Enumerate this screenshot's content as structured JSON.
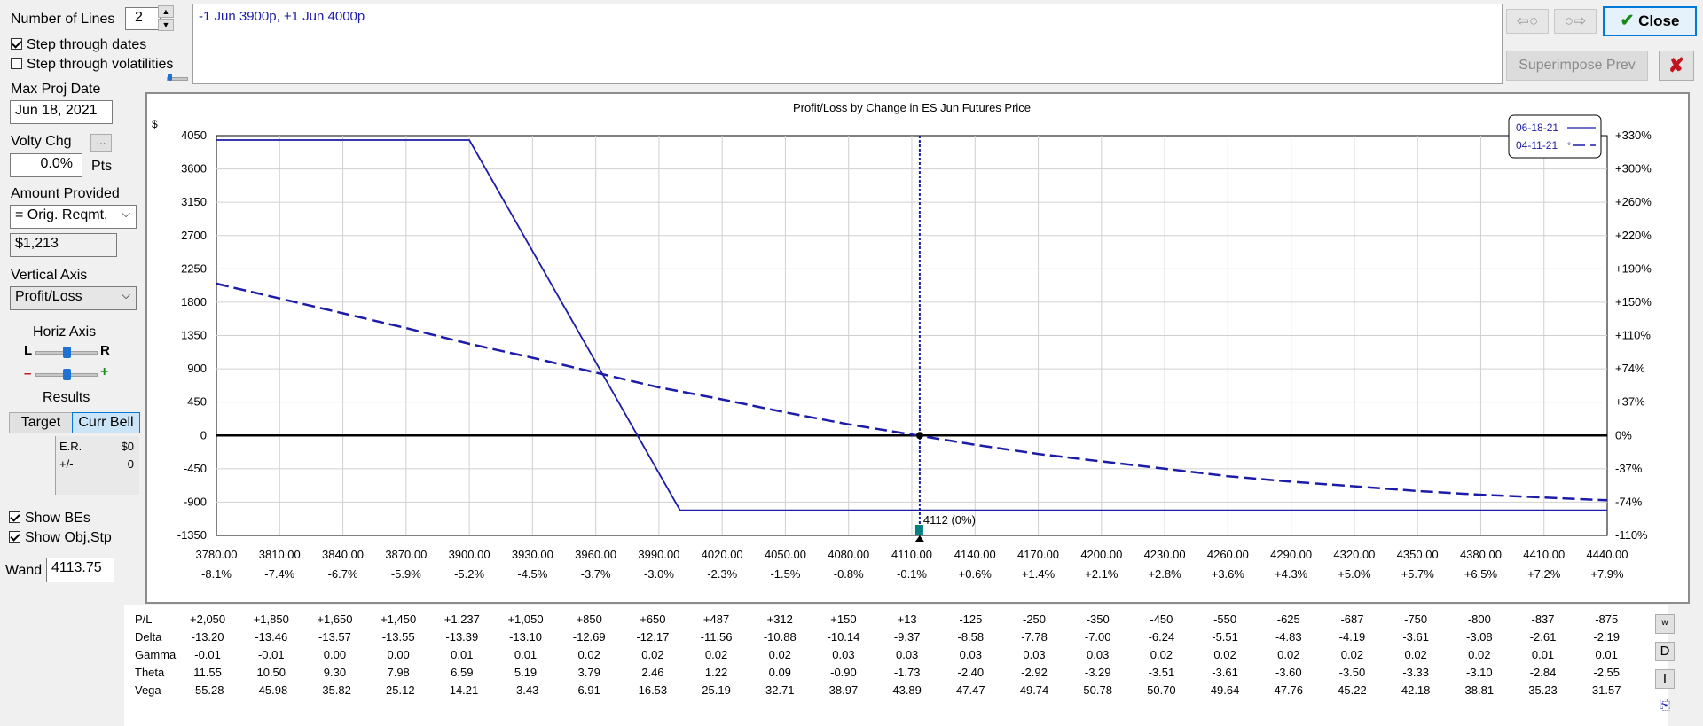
{
  "left_panel": {
    "num_lines_label": "Number of Lines",
    "num_lines_value": "2",
    "step_dates_label": "Step through dates",
    "step_dates_checked": true,
    "step_vols_label": "Step through volatilities",
    "step_vols_checked": false,
    "max_proj_date_label": "Max Proj Date",
    "max_proj_date_value": "Jun 18, 2021",
    "volty_chg_label": "Volty Chg",
    "volty_chg_btn": "...",
    "volty_chg_value": "0.0%",
    "pts_label": "Pts",
    "amount_label": "Amount Provided",
    "amount_select": "= Orig. Reqmt.",
    "amount_value": "$1,213",
    "vertical_axis_label": "Vertical Axis",
    "vertical_axis_select": "Profit/Loss",
    "horiz_axis_label": "Horiz Axis",
    "slider_left": "L",
    "slider_right": "R",
    "slider_minus": "–",
    "slider_plus": "+",
    "results_label": "Results",
    "target_btn": "Target",
    "curr_bell_btn": "Curr Bell",
    "er_label": "E.R.",
    "er_value": "$0",
    "pm_label": "+/-",
    "pm_value": "0",
    "show_bes_label": "Show BEs",
    "show_bes_checked": true,
    "show_obj_label": "Show Obj,Stp",
    "show_obj_checked": true,
    "wand_label": "Wand",
    "wand_value": "4113.75"
  },
  "top": {
    "positions_text": "-1 Jun 3900p, +1 Jun 4000p",
    "prev_btn": "⇦○",
    "next_btn": "○⇨",
    "close_btn": "Close",
    "superimpose_btn": "Superimpose Prev",
    "x_btn": "✘"
  },
  "colors": {
    "line": "#1c1ca8",
    "accent": "#0078d7",
    "close_check": "#1a8a1a",
    "x_red": "#c0141e",
    "marker_teal": "#008080"
  },
  "chart_data": {
    "type": "line",
    "title": "Profit/Loss by Change in ES Jun Futures Price",
    "ylabel": "$",
    "xlim": [
      3780,
      4440
    ],
    "ylim": [
      -1350,
      4050
    ],
    "x_ticks": [
      "3780.00",
      "3810.00",
      "3840.00",
      "3870.00",
      "3900.00",
      "3930.00",
      "3960.00",
      "3990.00",
      "4020.00",
      "4050.00",
      "4080.00",
      "4110.00",
      "4140.00",
      "4170.00",
      "4200.00",
      "4230.00",
      "4260.00",
      "4290.00",
      "4320.00",
      "4350.00",
      "4380.00",
      "4410.00",
      "4440.00"
    ],
    "x_pct_ticks": [
      "-8.1%",
      "-7.4%",
      "-6.7%",
      "-5.9%",
      "-5.2%",
      "-4.5%",
      "-3.7%",
      "-3.0%",
      "-2.3%",
      "-1.5%",
      "-0.8%",
      "-0.1%",
      "+0.6%",
      "+1.4%",
      "+2.1%",
      "+2.8%",
      "+3.6%",
      "+4.3%",
      "+5.0%",
      "+5.7%",
      "+6.5%",
      "+7.2%",
      "+7.9%"
    ],
    "y_ticks": [
      4050,
      3600,
      3150,
      2700,
      2250,
      1800,
      1350,
      900,
      450,
      0,
      -450,
      -900,
      -1350
    ],
    "y_ticks_right": [
      "+330%",
      "+300%",
      "+260%",
      "+220%",
      "+190%",
      "+150%",
      "+110%",
      "+74%",
      "+37%",
      "0%",
      "-37%",
      "-74%",
      "-110%"
    ],
    "grid": true,
    "legend_position": "top-right",
    "series": [
      {
        "name": "06-18-21",
        "style": "solid",
        "x": [
          3780,
          3900,
          4000,
          4440
        ],
        "y": [
          3990,
          3990,
          -1010,
          -1010
        ]
      },
      {
        "name": "04-11-21",
        "style": "dashed",
        "x": [
          3780,
          3810,
          3840,
          3870,
          3900,
          3930,
          3960,
          3990,
          4020,
          4050,
          4080,
          4110,
          4140,
          4170,
          4200,
          4230,
          4260,
          4290,
          4320,
          4350,
          4380,
          4410,
          4440
        ],
        "y": [
          2050,
          1850,
          1650,
          1450,
          1237,
          1050,
          850,
          650,
          487,
          312,
          150,
          13,
          -125,
          -250,
          -350,
          -450,
          -550,
          -625,
          -687,
          -750,
          -800,
          -837,
          -875
        ]
      }
    ],
    "wand_x": 4113.75,
    "marker_label": "4112 (0%)",
    "legend_suffix_dashed": "°"
  },
  "greeks": {
    "rows": [
      {
        "label": "P/L",
        "values": [
          "+2,050",
          "+1,850",
          "+1,650",
          "+1,450",
          "+1,237",
          "+1,050",
          "+850",
          "+650",
          "+487",
          "+312",
          "+150",
          "+13",
          "-125",
          "-250",
          "-350",
          "-450",
          "-550",
          "-625",
          "-687",
          "-750",
          "-800",
          "-837",
          "-875"
        ]
      },
      {
        "label": "Delta",
        "values": [
          "-13.20",
          "-13.46",
          "-13.57",
          "-13.55",
          "-13.39",
          "-13.10",
          "-12.69",
          "-12.17",
          "-11.56",
          "-10.88",
          "-10.14",
          "-9.37",
          "-8.58",
          "-7.78",
          "-7.00",
          "-6.24",
          "-5.51",
          "-4.83",
          "-4.19",
          "-3.61",
          "-3.08",
          "-2.61",
          "-2.19"
        ]
      },
      {
        "label": "Gamma",
        "values": [
          "-0.01",
          "-0.01",
          "0.00",
          "0.00",
          "0.01",
          "0.01",
          "0.02",
          "0.02",
          "0.02",
          "0.02",
          "0.03",
          "0.03",
          "0.03",
          "0.03",
          "0.03",
          "0.02",
          "0.02",
          "0.02",
          "0.02",
          "0.02",
          "0.02",
          "0.01",
          "0.01"
        ]
      },
      {
        "label": "Theta",
        "values": [
          "11.55",
          "10.50",
          "9.30",
          "7.98",
          "6.59",
          "5.19",
          "3.79",
          "2.46",
          "1.22",
          "0.09",
          "-0.90",
          "-1.73",
          "-2.40",
          "-2.92",
          "-3.29",
          "-3.51",
          "-3.61",
          "-3.60",
          "-3.50",
          "-3.33",
          "-3.10",
          "-2.84",
          "-2.55"
        ]
      },
      {
        "label": "Vega",
        "values": [
          "-55.28",
          "-45.98",
          "-35.82",
          "-25.12",
          "-14.21",
          "-3.43",
          "6.91",
          "16.53",
          "25.19",
          "32.71",
          "38.97",
          "43.89",
          "47.47",
          "49.74",
          "50.78",
          "50.70",
          "49.64",
          "47.76",
          "45.22",
          "42.18",
          "38.81",
          "35.23",
          "31.57"
        ]
      }
    ],
    "side_btns": [
      "w",
      "D",
      "I",
      "⎘"
    ]
  }
}
